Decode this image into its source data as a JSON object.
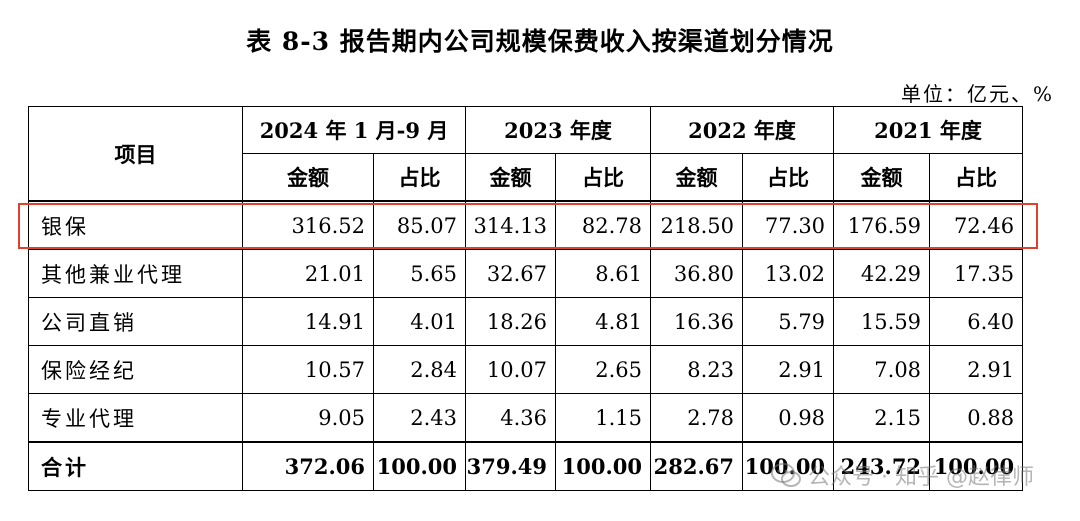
{
  "title": "表 8-3 报告期内公司规模保费收入按渠道划分情况",
  "unit": "单位：亿元、%",
  "table": {
    "row_header": "项目",
    "periods": [
      "2024 年 1 月-9 月",
      "2023 年度",
      "2022 年度",
      "2021 年度"
    ],
    "subheaders": [
      "金额",
      "占比"
    ],
    "rows": [
      {
        "label": "银保",
        "values": [
          "316.52",
          "85.07",
          "314.13",
          "82.78",
          "218.50",
          "77.30",
          "176.59",
          "72.46"
        ]
      },
      {
        "label": "其他兼业代理",
        "values": [
          "21.01",
          "5.65",
          "32.67",
          "8.61",
          "36.80",
          "13.02",
          "42.29",
          "17.35"
        ]
      },
      {
        "label": "公司直销",
        "values": [
          "14.91",
          "4.01",
          "18.26",
          "4.81",
          "16.36",
          "5.79",
          "15.59",
          "6.40"
        ]
      },
      {
        "label": "保险经纪",
        "values": [
          "10.57",
          "2.84",
          "10.07",
          "2.65",
          "8.23",
          "2.91",
          "7.08",
          "2.91"
        ]
      },
      {
        "label": "专业代理",
        "values": [
          "9.05",
          "2.43",
          "4.36",
          "1.15",
          "2.78",
          "0.98",
          "2.15",
          "0.88"
        ]
      },
      {
        "label": "合计",
        "values": [
          "372.06",
          "100.00",
          "379.49",
          "100.00",
          "282.67",
          "100.00",
          "243.72",
          "100.00"
        ]
      }
    ]
  },
  "highlight_color": "#e0412f",
  "watermark": {
    "text": "公众号 · 知乎 @赵律师",
    "icon": "wechat-icon"
  }
}
